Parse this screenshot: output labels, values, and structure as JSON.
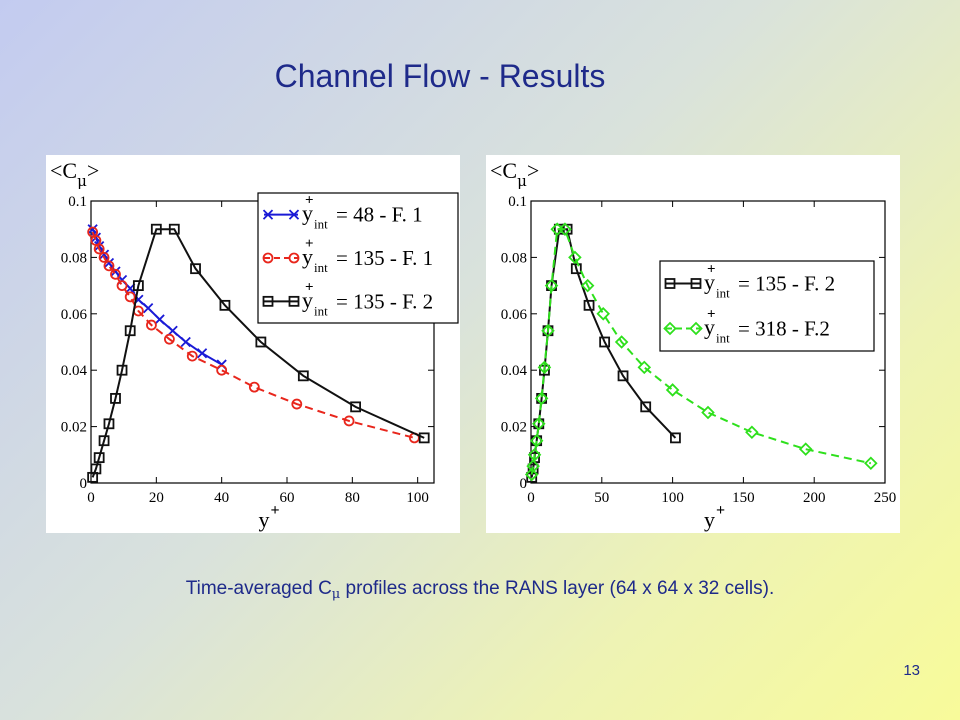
{
  "slide": {
    "title": "Channel Flow - Results",
    "caption_before": "Time-averaged C",
    "caption_subscript": "μ",
    "caption_after": " profiles across the RANS layer (64 x 64 x 32 cells).",
    "page_number": "13"
  },
  "chart_data": [
    {
      "type": "line",
      "ylabel": "<C",
      "ylabel_subscript": "μ",
      "ylabel_close": ">",
      "xlabel": "y",
      "xlabel_superscript": "+",
      "xlim": [
        0,
        105
      ],
      "ylim": [
        0,
        0.1
      ],
      "xticks": [
        0,
        20,
        40,
        60,
        80,
        100
      ],
      "yticks": [
        0,
        0.02,
        0.04,
        0.06,
        0.08,
        0.1
      ],
      "xtick_labels": [
        "0",
        "20",
        "40",
        "60",
        "80",
        "100"
      ],
      "ytick_labels": [
        "0",
        "0.02",
        "0.04",
        "0.06",
        "0.08",
        "0.1"
      ],
      "legend_position": "top-right",
      "series": [
        {
          "name": "y+int = 48 - F. 1",
          "legend_value": "= 48 - F. 1",
          "color": "#1a1ad6",
          "marker": "x",
          "dash": false,
          "x": [
            0.5,
            1.5,
            2.5,
            4,
            5.5,
            7.5,
            9.5,
            12,
            14.5,
            17.5,
            21,
            25,
            29,
            34,
            40
          ],
          "y": [
            0.09,
            0.087,
            0.084,
            0.081,
            0.078,
            0.075,
            0.072,
            0.069,
            0.065,
            0.062,
            0.058,
            0.054,
            0.05,
            0.046,
            0.042
          ]
        },
        {
          "name": "y+int = 135 - F. 1",
          "legend_value": "= 135 - F. 1",
          "color": "#e8261c",
          "marker": "circle",
          "dash": true,
          "x": [
            0.5,
            1.5,
            2.5,
            4,
            5.5,
            7.5,
            9.5,
            12,
            14.5,
            18.5,
            24,
            31,
            40,
            50,
            63,
            79,
            99
          ],
          "y": [
            0.089,
            0.086,
            0.083,
            0.08,
            0.077,
            0.074,
            0.07,
            0.066,
            0.061,
            0.056,
            0.051,
            0.045,
            0.04,
            0.034,
            0.028,
            0.022,
            0.016
          ]
        },
        {
          "name": "y+int = 135 - F. 2",
          "legend_value": "= 135 - F. 2",
          "color": "#111111",
          "marker": "square",
          "dash": false,
          "x": [
            0.5,
            1.5,
            2.5,
            4,
            5.5,
            7.5,
            9.5,
            12,
            14.5,
            20,
            25.5,
            32,
            41,
            52,
            65,
            81,
            102
          ],
          "y": [
            0.002,
            0.005,
            0.009,
            0.015,
            0.021,
            0.03,
            0.04,
            0.054,
            0.07,
            0.09,
            0.09,
            0.076,
            0.063,
            0.05,
            0.038,
            0.027,
            0.016
          ]
        }
      ]
    },
    {
      "type": "line",
      "ylabel": "<C",
      "ylabel_subscript": "μ",
      "ylabel_close": ">",
      "xlabel": "y",
      "xlabel_superscript": "+",
      "xlim": [
        0,
        250
      ],
      "ylim": [
        0,
        0.1
      ],
      "xticks": [
        0,
        50,
        100,
        150,
        200,
        250
      ],
      "yticks": [
        0,
        0.02,
        0.04,
        0.06,
        0.08,
        0.1
      ],
      "xtick_labels": [
        "0",
        "50",
        "100",
        "150",
        "200",
        "250"
      ],
      "ytick_labels": [
        "0",
        "0.02",
        "0.04",
        "0.06",
        "0.08",
        "0.1"
      ],
      "legend_position": "center-right",
      "series": [
        {
          "name": "y+int = 135 - F. 2",
          "legend_value": "= 135 - F. 2",
          "color": "#111111",
          "marker": "square",
          "dash": false,
          "x": [
            0.5,
            1.5,
            2.5,
            4,
            5.5,
            7.5,
            9.5,
            12,
            14.5,
            20,
            25.5,
            32,
            41,
            52,
            65,
            81,
            102
          ],
          "y": [
            0.002,
            0.005,
            0.009,
            0.015,
            0.021,
            0.03,
            0.04,
            0.054,
            0.07,
            0.09,
            0.09,
            0.076,
            0.063,
            0.05,
            0.038,
            0.027,
            0.016
          ]
        },
        {
          "name": "y+int = 318 - F.2",
          "legend_value": "= 318 - F.2",
          "color": "#2ee01c",
          "marker": "diamond",
          "dash": true,
          "x": [
            0.5,
            1.5,
            2.5,
            4,
            5.5,
            7.5,
            9.5,
            12,
            14.5,
            18.5,
            24,
            31,
            40,
            51,
            64,
            80,
            100,
            125,
            156,
            194,
            240
          ],
          "y": [
            0.003,
            0.006,
            0.01,
            0.015,
            0.021,
            0.03,
            0.041,
            0.054,
            0.07,
            0.09,
            0.09,
            0.08,
            0.07,
            0.06,
            0.05,
            0.041,
            0.033,
            0.025,
            0.018,
            0.012,
            0.007
          ]
        }
      ]
    }
  ]
}
